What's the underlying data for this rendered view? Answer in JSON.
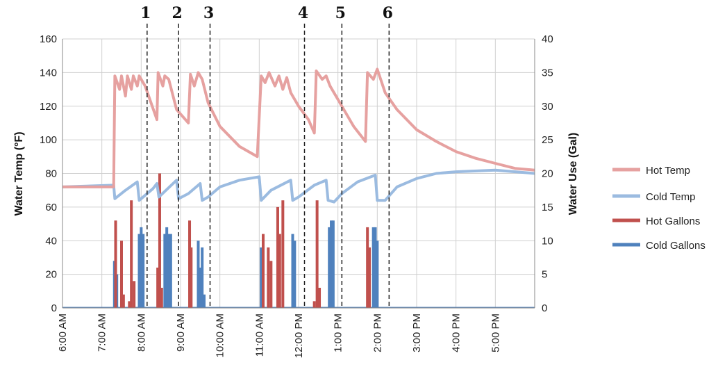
{
  "chart_data": {
    "type": "line",
    "xlabel": "",
    "ylabel": "Water Temp (°F)",
    "y2label": "Water Use (Gal)",
    "x_ticks": [
      "6:00 AM",
      "7:00 AM",
      "8:00 AM",
      "9:00 AM",
      "10:00 AM",
      "11:00 AM",
      "12:00 PM",
      "1:00 PM",
      "2:00 PM",
      "3:00 PM",
      "4:00 PM",
      "5:00 PM"
    ],
    "xlim_hours": [
      6,
      18
    ],
    "ylim": [
      0,
      160
    ],
    "y_ticks": [
      0,
      20,
      40,
      60,
      80,
      100,
      120,
      140,
      160
    ],
    "y2lim": [
      0,
      40
    ],
    "y2_ticks": [
      0,
      5,
      10,
      15,
      20,
      25,
      30,
      35,
      40
    ],
    "grid": true,
    "legend_position": "right",
    "series": [
      {
        "name": "Hot Temp",
        "axis": "left",
        "color": "#e6a1a0",
        "points": [
          [
            6.0,
            72
          ],
          [
            7.3,
            72
          ],
          [
            7.33,
            138
          ],
          [
            7.45,
            130
          ],
          [
            7.5,
            138
          ],
          [
            7.6,
            126
          ],
          [
            7.65,
            138
          ],
          [
            7.75,
            130
          ],
          [
            7.8,
            138
          ],
          [
            7.9,
            132
          ],
          [
            7.95,
            138
          ],
          [
            8.1,
            132
          ],
          [
            8.4,
            112
          ],
          [
            8.43,
            140
          ],
          [
            8.55,
            132
          ],
          [
            8.6,
            138
          ],
          [
            8.7,
            136
          ],
          [
            8.9,
            118
          ],
          [
            9.2,
            110
          ],
          [
            9.25,
            139
          ],
          [
            9.35,
            132
          ],
          [
            9.45,
            140
          ],
          [
            9.55,
            136
          ],
          [
            9.7,
            122
          ],
          [
            10.0,
            108
          ],
          [
            10.5,
            96
          ],
          [
            10.95,
            90
          ],
          [
            11.05,
            138
          ],
          [
            11.15,
            134
          ],
          [
            11.25,
            140
          ],
          [
            11.4,
            132
          ],
          [
            11.5,
            138
          ],
          [
            11.6,
            130
          ],
          [
            11.7,
            137
          ],
          [
            11.8,
            128
          ],
          [
            12.0,
            120
          ],
          [
            12.25,
            112
          ],
          [
            12.4,
            104
          ],
          [
            12.45,
            141
          ],
          [
            12.6,
            136
          ],
          [
            12.7,
            138
          ],
          [
            12.8,
            132
          ],
          [
            13.0,
            124
          ],
          [
            13.4,
            108
          ],
          [
            13.7,
            99
          ],
          [
            13.75,
            140
          ],
          [
            13.9,
            136
          ],
          [
            14.0,
            142
          ],
          [
            14.2,
            128
          ],
          [
            14.5,
            118
          ],
          [
            15.0,
            106
          ],
          [
            15.5,
            99
          ],
          [
            16.0,
            93
          ],
          [
            16.5,
            89
          ],
          [
            17.0,
            86
          ],
          [
            17.5,
            83
          ],
          [
            18.0,
            82
          ]
        ]
      },
      {
        "name": "Cold Temp",
        "axis": "left",
        "color": "#9bbbe0",
        "points": [
          [
            6.0,
            72
          ],
          [
            7.3,
            73
          ],
          [
            7.33,
            65
          ],
          [
            7.6,
            70
          ],
          [
            7.9,
            75
          ],
          [
            7.95,
            64
          ],
          [
            8.3,
            71
          ],
          [
            8.4,
            74
          ],
          [
            8.45,
            66
          ],
          [
            8.9,
            76
          ],
          [
            8.95,
            65
          ],
          [
            9.2,
            68
          ],
          [
            9.5,
            74
          ],
          [
            9.55,
            64
          ],
          [
            9.7,
            66
          ],
          [
            10.0,
            72
          ],
          [
            10.5,
            76
          ],
          [
            11.0,
            78
          ],
          [
            11.05,
            64
          ],
          [
            11.3,
            70
          ],
          [
            11.8,
            76
          ],
          [
            11.85,
            64
          ],
          [
            12.0,
            66
          ],
          [
            12.4,
            73
          ],
          [
            12.7,
            76
          ],
          [
            12.75,
            64
          ],
          [
            12.9,
            63
          ],
          [
            13.1,
            68
          ],
          [
            13.5,
            75
          ],
          [
            13.95,
            79
          ],
          [
            14.0,
            64
          ],
          [
            14.2,
            64
          ],
          [
            14.5,
            72
          ],
          [
            15.0,
            77
          ],
          [
            15.5,
            80
          ],
          [
            16.0,
            81
          ],
          [
            17.0,
            82
          ],
          [
            18.0,
            80
          ]
        ]
      },
      {
        "name": "Hot Gallons",
        "axis": "right",
        "color": "#c0504d",
        "bars": [
          [
            7.35,
            13
          ],
          [
            7.5,
            10
          ],
          [
            7.55,
            2
          ],
          [
            7.7,
            1
          ],
          [
            7.75,
            16
          ],
          [
            7.82,
            4
          ],
          [
            8.42,
            6
          ],
          [
            8.47,
            20
          ],
          [
            8.52,
            3
          ],
          [
            9.23,
            13
          ],
          [
            9.27,
            9
          ],
          [
            11.1,
            11
          ],
          [
            11.23,
            9
          ],
          [
            11.3,
            7
          ],
          [
            11.47,
            15
          ],
          [
            11.52,
            11
          ],
          [
            11.6,
            16
          ],
          [
            12.4,
            1
          ],
          [
            12.47,
            16
          ],
          [
            12.53,
            3
          ],
          [
            13.75,
            12
          ],
          [
            13.8,
            9
          ]
        ]
      },
      {
        "name": "Cold Gallons",
        "axis": "right",
        "color": "#4f81bd",
        "bars": [
          [
            7.32,
            7
          ],
          [
            7.38,
            5
          ],
          [
            7.95,
            11
          ],
          [
            8.0,
            12
          ],
          [
            8.05,
            11
          ],
          [
            8.6,
            11
          ],
          [
            8.65,
            12
          ],
          [
            8.7,
            11
          ],
          [
            8.75,
            11
          ],
          [
            9.45,
            10
          ],
          [
            9.5,
            6
          ],
          [
            9.55,
            9
          ],
          [
            9.6,
            2
          ],
          [
            11.05,
            9
          ],
          [
            11.1,
            2
          ],
          [
            11.85,
            11
          ],
          [
            11.9,
            10
          ],
          [
            12.78,
            12
          ],
          [
            12.83,
            13
          ],
          [
            12.88,
            13
          ],
          [
            13.9,
            12
          ],
          [
            13.95,
            12
          ],
          [
            14.0,
            10
          ]
        ]
      }
    ],
    "annotations": {
      "markers": [
        {
          "label": "1",
          "x": 8.15
        },
        {
          "label": "2",
          "x": 8.95
        },
        {
          "label": "3",
          "x": 9.75
        },
        {
          "label": "4",
          "x": 12.15
        },
        {
          "label": "5",
          "x": 13.1
        },
        {
          "label": "6",
          "x": 14.3
        }
      ]
    }
  }
}
